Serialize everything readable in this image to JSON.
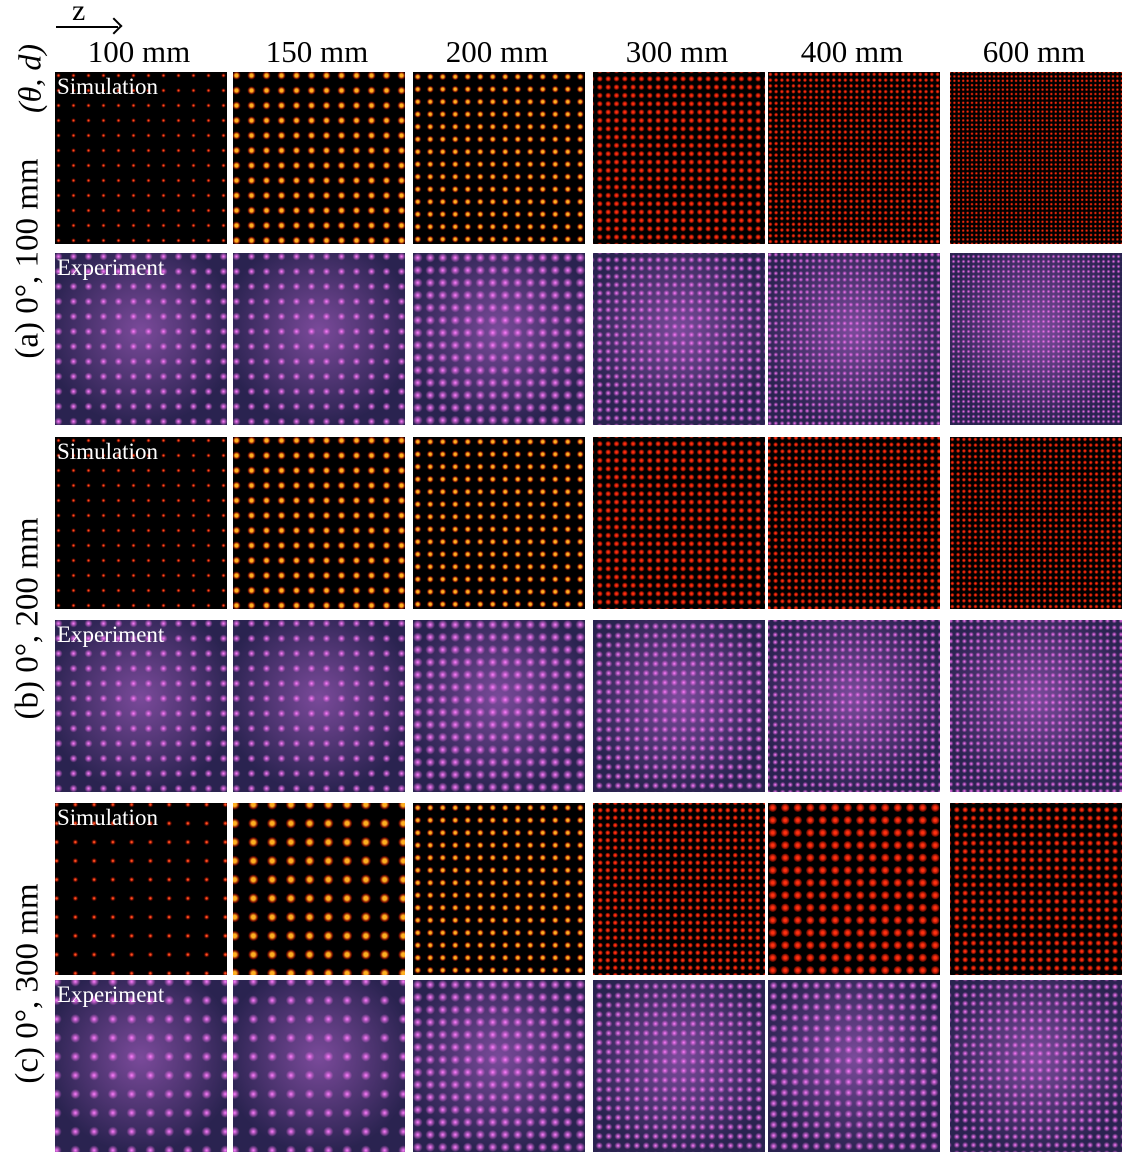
{
  "figure": {
    "axis_label": "z",
    "param_label": "(θ, d)",
    "columns": [
      "100 mm",
      "150 mm",
      "200 mm",
      "300 mm",
      "400 mm",
      "600 mm"
    ],
    "groups": [
      {
        "label": "(a) 0°, 100 mm"
      },
      {
        "label": "(b) 0°, 200 mm"
      },
      {
        "label": "(c) 0°, 300 mm"
      }
    ],
    "row_tags": [
      "Simulation",
      "Experiment",
      "Simulation",
      "Experiment",
      "Simulation",
      "Experiment"
    ],
    "colors": {
      "simulation_bg": "#000000",
      "simulation_spot": "#ff3a10",
      "experiment_bg": "#2a2350",
      "experiment_spot": "#ff80ff"
    }
  }
}
